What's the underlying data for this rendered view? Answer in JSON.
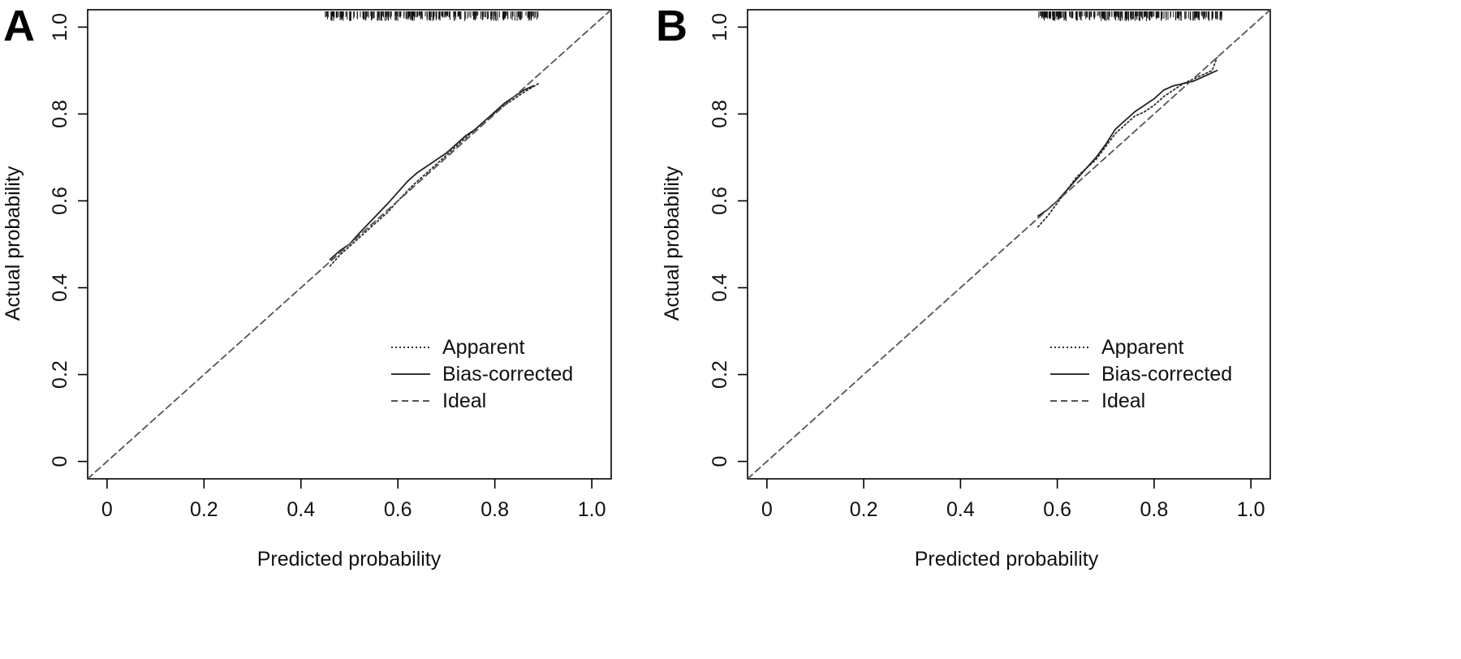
{
  "chart_data": [
    {
      "type": "line",
      "panel": "A",
      "xlabel": "Predicted probability",
      "ylabel": "Actual probability",
      "xlim": [
        -0.04,
        1.04
      ],
      "ylim": [
        -0.04,
        1.04
      ],
      "x_ticks": [
        0,
        0.2,
        0.4,
        0.6,
        0.8,
        1.0
      ],
      "x_tick_labels": [
        "0",
        "0.2",
        "0.4",
        "0.6",
        "0.8",
        "1.0"
      ],
      "y_ticks": [
        0,
        0.2,
        0.4,
        0.6,
        0.8,
        1.0
      ],
      "y_tick_labels": [
        "0",
        "0.2",
        "0.4",
        "0.6",
        "0.8",
        "1.0"
      ],
      "grid": false,
      "legend_position": "bottom-right",
      "series": [
        {
          "name": "Apparent",
          "style": "dotted",
          "x": [
            0.46,
            0.48,
            0.5,
            0.52,
            0.55,
            0.58,
            0.6,
            0.63,
            0.66,
            0.7,
            0.74,
            0.78,
            0.82,
            0.86,
            0.89
          ],
          "y": [
            0.45,
            0.475,
            0.495,
            0.515,
            0.545,
            0.575,
            0.6,
            0.635,
            0.665,
            0.705,
            0.745,
            0.785,
            0.82,
            0.85,
            0.87
          ]
        },
        {
          "name": "Bias-corrected",
          "style": "solid",
          "x": [
            0.46,
            0.48,
            0.5,
            0.52,
            0.55,
            0.58,
            0.6,
            0.62,
            0.64,
            0.66,
            0.68,
            0.7,
            0.72,
            0.74,
            0.76,
            0.78,
            0.8,
            0.82,
            0.84,
            0.86,
            0.88
          ],
          "y": [
            0.465,
            0.485,
            0.5,
            0.525,
            0.56,
            0.595,
            0.62,
            0.645,
            0.665,
            0.68,
            0.695,
            0.71,
            0.73,
            0.75,
            0.765,
            0.785,
            0.805,
            0.825,
            0.84,
            0.855,
            0.865
          ]
        },
        {
          "name": "Ideal",
          "style": "dashed",
          "x": [
            -0.04,
            1.04
          ],
          "y": [
            -0.04,
            1.04
          ]
        }
      ],
      "rug_range": [
        0.45,
        0.89
      ]
    },
    {
      "type": "line",
      "panel": "B",
      "xlabel": "Predicted probability",
      "ylabel": "Actual probability",
      "xlim": [
        -0.04,
        1.04
      ],
      "ylim": [
        -0.04,
        1.04
      ],
      "x_ticks": [
        0,
        0.2,
        0.4,
        0.6,
        0.8,
        1.0
      ],
      "x_tick_labels": [
        "0",
        "0.2",
        "0.4",
        "0.6",
        "0.8",
        "1.0"
      ],
      "y_ticks": [
        0,
        0.2,
        0.4,
        0.6,
        0.8,
        1.0
      ],
      "y_tick_labels": [
        "0",
        "0.2",
        "0.4",
        "0.6",
        "0.8",
        "1.0"
      ],
      "grid": false,
      "legend_position": "bottom-right",
      "series": [
        {
          "name": "Apparent",
          "style": "dotted",
          "x": [
            0.56,
            0.58,
            0.6,
            0.62,
            0.64,
            0.66,
            0.68,
            0.7,
            0.72,
            0.74,
            0.76,
            0.78,
            0.8,
            0.82,
            0.84,
            0.86,
            0.88,
            0.9,
            0.92,
            0.93
          ],
          "y": [
            0.54,
            0.565,
            0.595,
            0.625,
            0.655,
            0.675,
            0.695,
            0.725,
            0.755,
            0.775,
            0.795,
            0.805,
            0.82,
            0.84,
            0.855,
            0.87,
            0.88,
            0.89,
            0.9,
            0.93
          ]
        },
        {
          "name": "Bias-corrected",
          "style": "solid",
          "x": [
            0.56,
            0.58,
            0.6,
            0.62,
            0.64,
            0.66,
            0.68,
            0.7,
            0.72,
            0.74,
            0.76,
            0.78,
            0.8,
            0.82,
            0.84,
            0.86,
            0.88,
            0.9,
            0.92,
            0.93
          ],
          "y": [
            0.565,
            0.58,
            0.6,
            0.625,
            0.65,
            0.675,
            0.7,
            0.73,
            0.765,
            0.785,
            0.805,
            0.82,
            0.835,
            0.855,
            0.865,
            0.87,
            0.875,
            0.885,
            0.895,
            0.9
          ]
        },
        {
          "name": "Ideal",
          "style": "dashed",
          "x": [
            -0.04,
            1.04
          ],
          "y": [
            -0.04,
            1.04
          ]
        }
      ],
      "rug_range": [
        0.56,
        0.94
      ]
    }
  ]
}
